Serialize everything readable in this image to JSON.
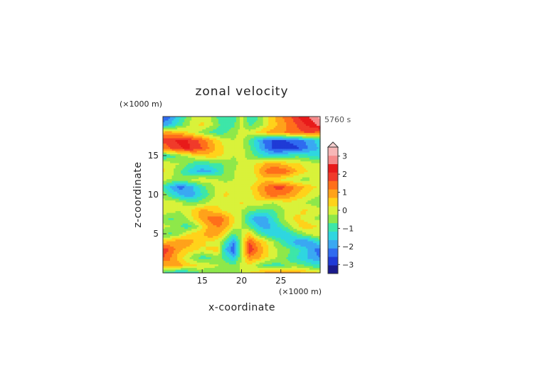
{
  "chart_data": {
    "type": "heatmap",
    "title": "zonal velocity",
    "xlabel": "x-coordinate",
    "ylabel": "z-coordinate",
    "x_unit_label": "(×1000 m)",
    "y_unit_label": "(×1000 m)",
    "time_label": "5760 s",
    "xlim": [
      10,
      30
    ],
    "ylim": [
      0,
      20
    ],
    "x_ticks": [
      "15",
      "20",
      "25"
    ],
    "y_ticks": [
      "5",
      "10",
      "15"
    ],
    "colorbar_ticks": [
      "3",
      "2",
      "1",
      "0",
      "−1",
      "−2",
      "−3"
    ],
    "colorbar_levels": [
      -3.5,
      -3,
      -2.5,
      -2,
      -1.5,
      -1,
      -0.5,
      0,
      0.5,
      1,
      1.5,
      2,
      2.5,
      3,
      3.5
    ],
    "colorbar_colors": [
      "#1a1a8c",
      "#1f3ad6",
      "#2f6bf0",
      "#3aa8f2",
      "#2fd6e0",
      "#3de6a8",
      "#8ee84a",
      "#d9f23a",
      "#ffd21a",
      "#ffa21a",
      "#ff6f1a",
      "#f03a2a",
      "#e81a1a",
      "#f58a8a",
      "#f7b7b7"
    ],
    "colorbar_extend": "max",
    "x": [
      10,
      11,
      12,
      13,
      14,
      15,
      16,
      17,
      18,
      19,
      20,
      21,
      22,
      23,
      24,
      25,
      26,
      27,
      28,
      29,
      30
    ],
    "y": [
      0,
      1,
      2,
      3,
      4,
      5,
      6,
      7,
      8,
      9,
      10,
      11,
      12,
      13,
      14,
      15,
      16,
      17,
      18,
      19,
      20
    ],
    "z": [
      [
        -0.5,
        -1.2,
        -1.5,
        -1.2,
        -0.8,
        -0.5,
        -0.4,
        -0.3,
        -0.3,
        -0.2,
        0.0,
        0.5,
        0.8,
        1.2,
        1.5,
        1.6,
        1.5,
        1.3,
        1.1,
        0.8,
        0.6
      ],
      [
        1.0,
        1.4,
        1.2,
        0.8,
        0.6,
        0.4,
        0.2,
        0.0,
        -0.2,
        -0.4,
        0.2,
        0.4,
        -0.2,
        -0.6,
        -0.8,
        -0.6,
        -0.4,
        -0.3,
        -0.5,
        -0.8,
        -1.0
      ],
      [
        2.0,
        1.5,
        0.8,
        0.2,
        -0.4,
        -0.8,
        -0.6,
        -0.2,
        -0.8,
        -1.5,
        0.0,
        1.4,
        1.2,
        0.6,
        0.2,
        -0.2,
        -0.6,
        -1.0,
        -1.4,
        -1.8,
        -2.0
      ],
      [
        2.5,
        1.8,
        1.2,
        0.8,
        0.6,
        0.4,
        0.6,
        0.8,
        -1.5,
        -2.5,
        0.0,
        2.5,
        1.6,
        0.8,
        0.2,
        -0.2,
        -0.4,
        -0.8,
        -1.2,
        -1.8,
        -2.4
      ],
      [
        0.8,
        1.2,
        1.5,
        1.4,
        1.0,
        0.6,
        0.4,
        0.2,
        -0.8,
        -2.0,
        0.0,
        2.0,
        1.2,
        0.6,
        0.0,
        -0.6,
        -1.2,
        -1.8,
        -2.0,
        -1.6,
        -1.0
      ],
      [
        -0.5,
        -0.6,
        -0.2,
        0.4,
        0.8,
        1.0,
        1.4,
        1.2,
        0.4,
        -0.6,
        0.0,
        0.8,
        -0.4,
        -1.0,
        -1.4,
        -1.6,
        -1.2,
        -0.6,
        -0.2,
        0.2,
        0.5
      ],
      [
        0.2,
        0.0,
        -0.4,
        -0.8,
        -0.4,
        0.4,
        1.2,
        1.6,
        1.2,
        0.4,
        0.0,
        -0.6,
        -1.4,
        -1.8,
        -1.4,
        -0.8,
        -0.2,
        0.4,
        0.8,
        0.6,
        0.4
      ],
      [
        -0.4,
        -0.6,
        -0.4,
        0.0,
        0.6,
        1.2,
        1.8,
        2.0,
        1.4,
        0.6,
        0.0,
        -1.2,
        -2.0,
        -1.8,
        -1.0,
        -0.2,
        0.4,
        0.6,
        0.4,
        0.0,
        -0.2
      ],
      [
        0.4,
        0.2,
        0.0,
        0.2,
        0.8,
        1.2,
        1.0,
        0.6,
        0.4,
        0.2,
        0.0,
        -0.4,
        -0.6,
        -0.8,
        -0.6,
        -0.2,
        0.2,
        0.4,
        0.6,
        0.4,
        0.2
      ],
      [
        0.2,
        0.4,
        0.2,
        -0.2,
        -0.4,
        -0.2,
        0.2,
        0.4,
        0.2,
        0.0,
        0.6,
        0.2,
        0.4,
        0.2,
        0.0,
        0.2,
        0.4,
        0.2,
        0.0,
        -0.2,
        -0.4
      ],
      [
        -0.2,
        -0.8,
        -1.4,
        -1.8,
        -1.6,
        -1.0,
        -0.4,
        0.2,
        0.6,
        0.4,
        0.0,
        0.2,
        0.8,
        1.4,
        1.8,
        1.6,
        1.4,
        1.0,
        0.6,
        0.2,
        0.0
      ],
      [
        -0.8,
        -1.6,
        -2.2,
        -2.0,
        -1.4,
        -0.8,
        -0.2,
        0.2,
        0.4,
        0.4,
        0.2,
        0.4,
        1.0,
        1.6,
        2.0,
        2.2,
        1.8,
        1.4,
        1.0,
        0.6,
        0.4
      ],
      [
        0.2,
        0.0,
        -0.2,
        0.0,
        0.2,
        0.4,
        0.2,
        0.0,
        -0.2,
        0.0,
        0.2,
        0.0,
        0.4,
        0.8,
        0.6,
        0.4,
        0.2,
        0.0,
        -0.2,
        0.0,
        0.2
      ],
      [
        0.6,
        0.2,
        -0.4,
        -1.0,
        -1.4,
        -1.8,
        -1.6,
        -1.0,
        -0.4,
        0.0,
        0.2,
        0.0,
        0.8,
        1.6,
        2.0,
        2.0,
        1.6,
        1.0,
        0.6,
        0.4,
        0.2
      ],
      [
        0.4,
        0.2,
        0.0,
        -0.4,
        -0.8,
        -1.0,
        -0.8,
        -0.6,
        -0.4,
        -0.2,
        0.2,
        0.2,
        0.6,
        1.0,
        1.2,
        1.0,
        0.8,
        0.6,
        0.4,
        0.2,
        0.0
      ],
      [
        -1.0,
        -0.8,
        -0.4,
        0.0,
        0.4,
        0.6,
        0.8,
        0.6,
        0.4,
        0.0,
        0.2,
        -0.2,
        -0.6,
        -1.0,
        -1.2,
        -1.0,
        -0.8,
        -0.6,
        -0.8,
        -1.0,
        -1.2
      ],
      [
        1.6,
        2.0,
        2.4,
        2.6,
        2.4,
        2.0,
        1.4,
        0.8,
        0.4,
        0.2,
        0.2,
        -0.4,
        -1.2,
        -2.0,
        -2.6,
        -2.8,
        -2.8,
        -2.6,
        -2.2,
        -1.8,
        -1.4
      ],
      [
        2.2,
        2.4,
        2.6,
        2.6,
        2.2,
        1.8,
        1.2,
        0.6,
        0.2,
        0.0,
        0.2,
        -0.6,
        -1.4,
        -2.2,
        -2.6,
        -2.6,
        -2.4,
        -2.2,
        -2.0,
        -1.6,
        -1.2
      ],
      [
        1.2,
        1.2,
        1.0,
        0.6,
        0.2,
        -0.2,
        -0.6,
        -0.8,
        -0.6,
        -0.2,
        0.2,
        0.2,
        0.6,
        1.0,
        1.2,
        1.4,
        1.6,
        1.8,
        2.0,
        2.0,
        1.8
      ],
      [
        -1.8,
        -1.4,
        -0.8,
        -0.2,
        0.4,
        0.6,
        0.2,
        -0.4,
        -0.8,
        -0.6,
        0.2,
        -0.6,
        -0.4,
        0.2,
        0.8,
        1.2,
        1.6,
        2.0,
        2.4,
        2.8,
        3.2
      ],
      [
        -2.6,
        -2.0,
        -1.2,
        -0.4,
        0.2,
        0.4,
        0.0,
        -0.6,
        -1.0,
        -0.8,
        0.2,
        -0.8,
        -0.6,
        0.2,
        0.8,
        1.4,
        1.8,
        2.4,
        2.8,
        3.2,
        3.6
      ]
    ]
  }
}
